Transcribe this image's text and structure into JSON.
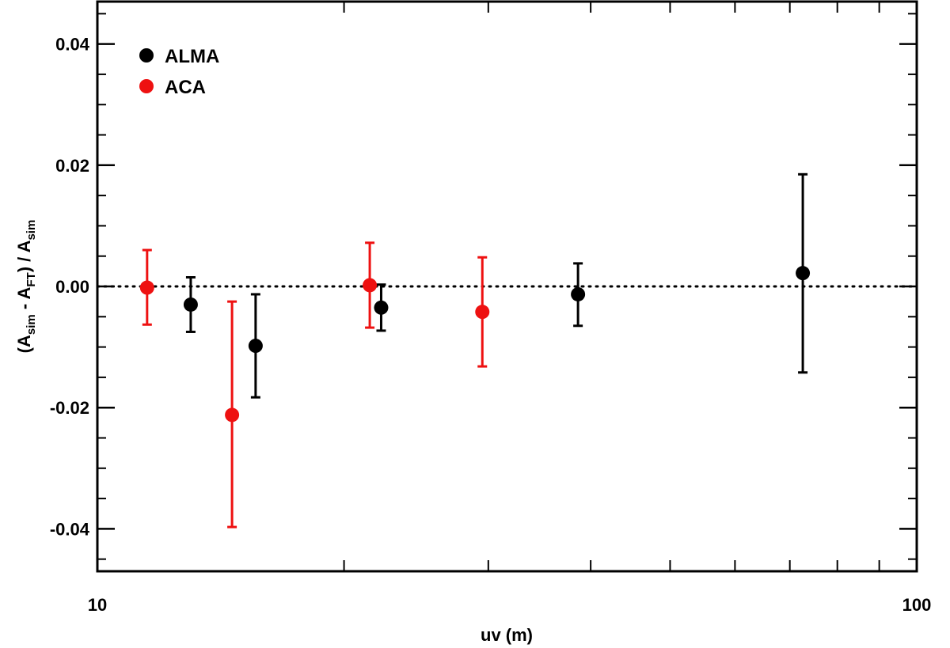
{
  "chart_data": {
    "type": "scatter",
    "xlabel": "uv (m)",
    "ylabel_parts": {
      "open": "(A",
      "sub1": "sim",
      "minus": " - A",
      "sub2": "FT",
      "close": ") / A",
      "sub3": "sim"
    },
    "x_scale": "log",
    "xlim": [
      10,
      100
    ],
    "ylim": [
      -0.047,
      0.047
    ],
    "x_ticks": [
      {
        "value": 10,
        "label": "10"
      },
      {
        "value": 100,
        "label": "100"
      }
    ],
    "y_ticks": [
      {
        "value": 0.04,
        "label": "0.04"
      },
      {
        "value": 0.02,
        "label": "0.02"
      },
      {
        "value": 0.0,
        "label": "0.00"
      },
      {
        "value": -0.02,
        "label": "-0.02"
      },
      {
        "value": -0.04,
        "label": "-0.04"
      }
    ],
    "reference_line": {
      "y": 0.0,
      "style": "dotted"
    },
    "legend": {
      "placement": "top-left"
    },
    "colors": {
      "ALMA": "#000000",
      "ACA": "#ee1111"
    },
    "series": [
      {
        "name": "ALMA",
        "points": [
          {
            "x": 13.0,
            "y": -0.003,
            "err_low": -0.0075,
            "err_high": 0.0015
          },
          {
            "x": 15.6,
            "y": -0.0098,
            "err_low": -0.0183,
            "err_high": -0.0013
          },
          {
            "x": 22.2,
            "y": -0.0035,
            "err_low": -0.0073,
            "err_high": 0.0003
          },
          {
            "x": 38.6,
            "y": -0.0013,
            "err_low": -0.0065,
            "err_high": 0.0038
          },
          {
            "x": 72.6,
            "y": 0.0022,
            "err_low": -0.0142,
            "err_high": 0.0185
          }
        ]
      },
      {
        "name": "ACA",
        "points": [
          {
            "x": 11.5,
            "y": -0.0002,
            "err_low": -0.0063,
            "err_high": 0.006
          },
          {
            "x": 14.6,
            "y": -0.0212,
            "err_low": -0.0397,
            "err_high": -0.0025
          },
          {
            "x": 21.5,
            "y": 0.0002,
            "err_low": -0.0068,
            "err_high": 0.0072
          },
          {
            "x": 29.5,
            "y": -0.0042,
            "err_low": -0.0132,
            "err_high": 0.0048
          }
        ]
      }
    ]
  }
}
